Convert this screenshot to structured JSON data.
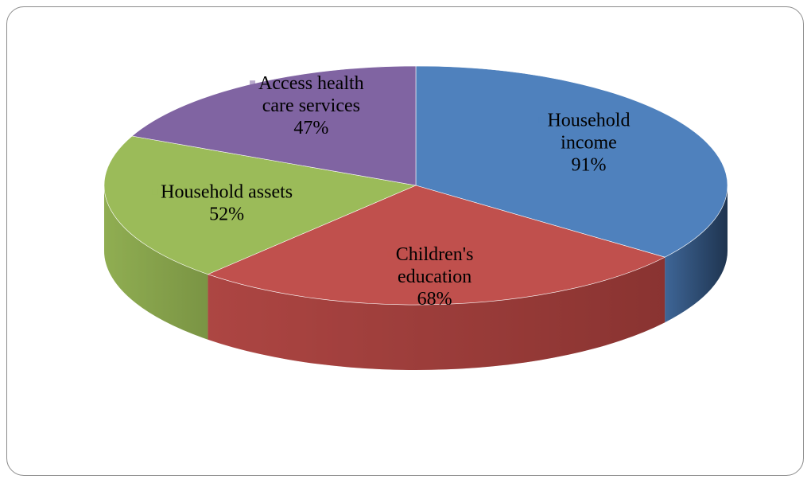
{
  "chart_data": {
    "type": "pie",
    "style": "3d",
    "title": "",
    "slices": [
      {
        "label_lines": [
          "Household",
          "income"
        ],
        "value_label": "91%",
        "value": 91,
        "color": "#4f81bd",
        "side_color": "#1f3550"
      },
      {
        "label_lines": [
          "Children's",
          "education"
        ],
        "value_label": "68%",
        "value": 68,
        "color": "#c0504d",
        "side_color": "#8a3432"
      },
      {
        "label_lines": [
          "Household assets"
        ],
        "value_label": "52%",
        "value": 52,
        "color": "#9bbb59",
        "side_color": "#7a9444"
      },
      {
        "label_lines": [
          "Access health",
          "care services"
        ],
        "value_label": "47%",
        "value": 47,
        "color": "#8064a2",
        "side_color": "#5c4775"
      }
    ]
  }
}
